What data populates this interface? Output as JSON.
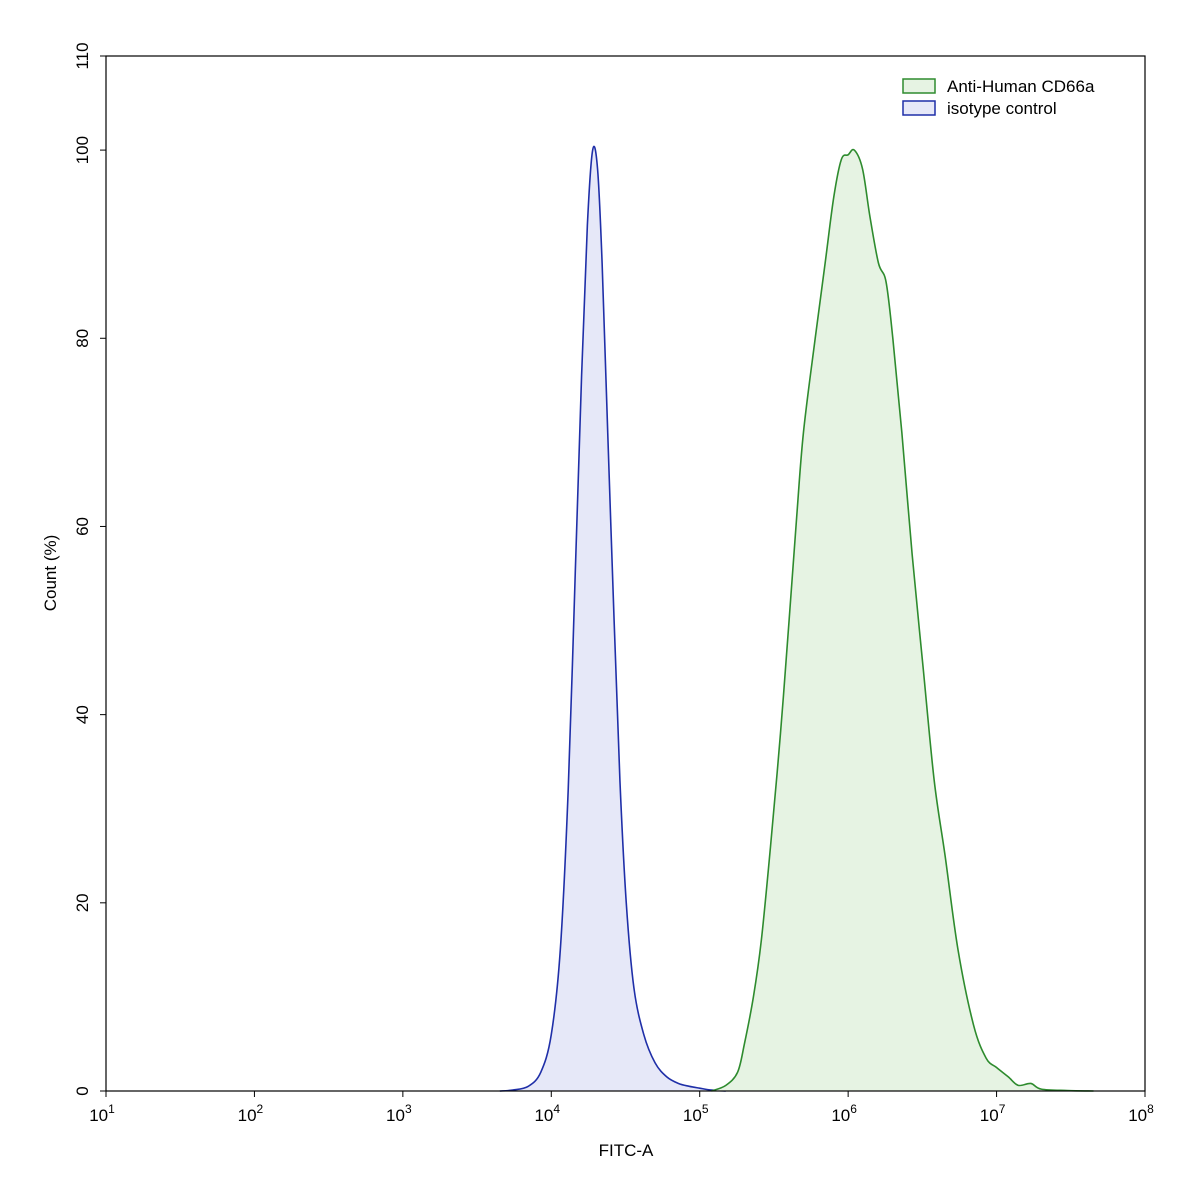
{
  "chart_data": {
    "type": "area",
    "xlabel": "FITC-A",
    "ylabel": "Count  (%)",
    "x_scale": "log",
    "xlim": [
      10,
      100000000
    ],
    "ylim": [
      0,
      110
    ],
    "x_ticks": [
      {
        "base": "10",
        "exp": "1"
      },
      {
        "base": "10",
        "exp": "2"
      },
      {
        "base": "10",
        "exp": "3"
      },
      {
        "base": "10",
        "exp": "4"
      },
      {
        "base": "10",
        "exp": "5"
      },
      {
        "base": "10",
        "exp": "6"
      },
      {
        "base": "10",
        "exp": "7"
      },
      {
        "base": "10",
        "exp": "8"
      }
    ],
    "y_ticks": [
      "0",
      "20",
      "40",
      "60",
      "80",
      "100",
      "110"
    ],
    "legend_position": "top-right",
    "series": [
      {
        "name": "Anti-Human CD66a",
        "stroke": "#2e8b2e",
        "fill": "#e6f3e3",
        "points": [
          [
            120000,
            0
          ],
          [
            150000,
            0.6
          ],
          [
            180000,
            2
          ],
          [
            200000,
            5
          ],
          [
            230000,
            10
          ],
          [
            260000,
            16
          ],
          [
            300000,
            26
          ],
          [
            350000,
            38
          ],
          [
            400000,
            50
          ],
          [
            450000,
            61
          ],
          [
            500000,
            70
          ],
          [
            600000,
            80
          ],
          [
            700000,
            88
          ],
          [
            800000,
            95
          ],
          [
            900000,
            99
          ],
          [
            1000000,
            99.5
          ],
          [
            1100000,
            100
          ],
          [
            1250000,
            98
          ],
          [
            1400000,
            93
          ],
          [
            1600000,
            88
          ],
          [
            1800000,
            86
          ],
          [
            2000000,
            80
          ],
          [
            2300000,
            70
          ],
          [
            2700000,
            57
          ],
          [
            3200000,
            45
          ],
          [
            3800000,
            33
          ],
          [
            4500000,
            25
          ],
          [
            5500000,
            15
          ],
          [
            7000000,
            7
          ],
          [
            8500000,
            3.5
          ],
          [
            10000000,
            2.5
          ],
          [
            12000000,
            1.5
          ],
          [
            14000000,
            0.6
          ],
          [
            17000000,
            0.8
          ],
          [
            20000000,
            0.2
          ],
          [
            30000000,
            0.05
          ],
          [
            45000000,
            0
          ]
        ]
      },
      {
        "name": "isotype control",
        "stroke": "#1f2fa8",
        "fill": "#e6e8f8",
        "points": [
          [
            4500,
            0
          ],
          [
            5500,
            0.1
          ],
          [
            7000,
            0.5
          ],
          [
            8500,
            2
          ],
          [
            10000,
            6
          ],
          [
            11500,
            15
          ],
          [
            13000,
            32
          ],
          [
            14500,
            55
          ],
          [
            16000,
            76
          ],
          [
            17500,
            92
          ],
          [
            19000,
            100
          ],
          [
            20500,
            98
          ],
          [
            22000,
            88
          ],
          [
            24000,
            70
          ],
          [
            26500,
            50
          ],
          [
            29000,
            33
          ],
          [
            32000,
            20
          ],
          [
            36000,
            11
          ],
          [
            42000,
            6
          ],
          [
            50000,
            3
          ],
          [
            60000,
            1.5
          ],
          [
            72000,
            0.8
          ],
          [
            85000,
            0.5
          ],
          [
            100000,
            0.3
          ],
          [
            120000,
            0.1
          ],
          [
            150000,
            0
          ]
        ]
      }
    ]
  }
}
